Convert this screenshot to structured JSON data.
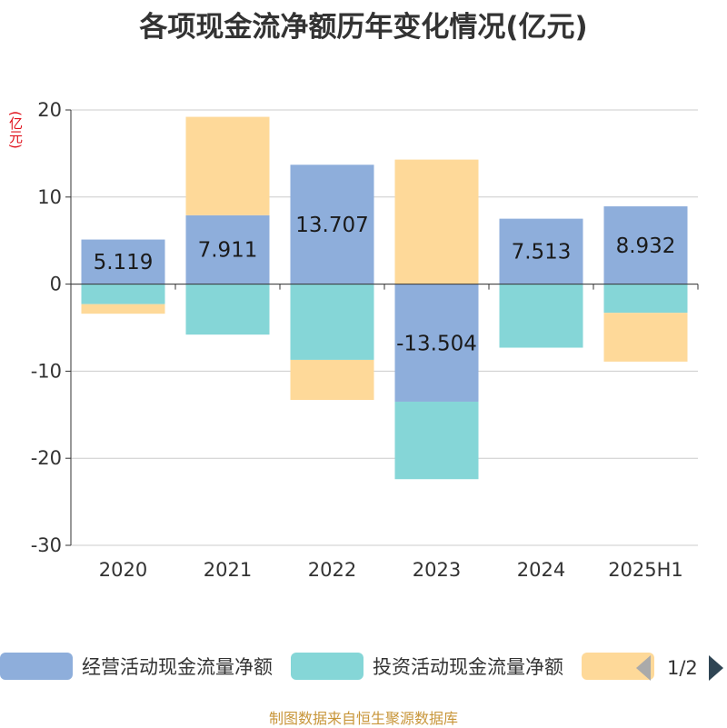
{
  "title": "各项现金流净额历年变化情况(亿元)",
  "unit_label": "(亿元)",
  "source": "制图数据来自恒生聚源数据库",
  "pager": {
    "text": "1/2"
  },
  "legend": [
    {
      "name": "经营活动现金流量净额",
      "color": "#8eaedb"
    },
    {
      "name": "投资活动现金流量净额",
      "color": "#85d6d7"
    },
    {
      "name": "",
      "color": "#fed999"
    }
  ],
  "chart_data": {
    "type": "bar",
    "stacked": true,
    "categories": [
      "2020",
      "2021",
      "2022",
      "2023",
      "2024",
      "2025H1"
    ],
    "series": [
      {
        "name": "经营活动现金流量净额",
        "color": "#8eaedb",
        "values": [
          5.119,
          7.911,
          13.707,
          -13.504,
          7.513,
          8.932
        ],
        "labels": [
          "5.119",
          "7.911",
          "13.707",
          "-13.504",
          "7.513",
          "8.932"
        ]
      },
      {
        "name": "投资活动现金流量净额",
        "color": "#85d6d7",
        "values": [
          -2.3,
          -5.8,
          -8.7,
          -8.9,
          -7.3,
          -3.3
        ]
      },
      {
        "name": "",
        "color": "#fed999",
        "values": [
          -1.1,
          11.3,
          -4.6,
          14.3,
          0,
          -5.6
        ]
      }
    ],
    "ylim": [
      -30,
      20
    ],
    "yticks": [
      20,
      10,
      0,
      -10,
      -20,
      -30
    ],
    "grid": true,
    "legend_position": "bottom"
  }
}
